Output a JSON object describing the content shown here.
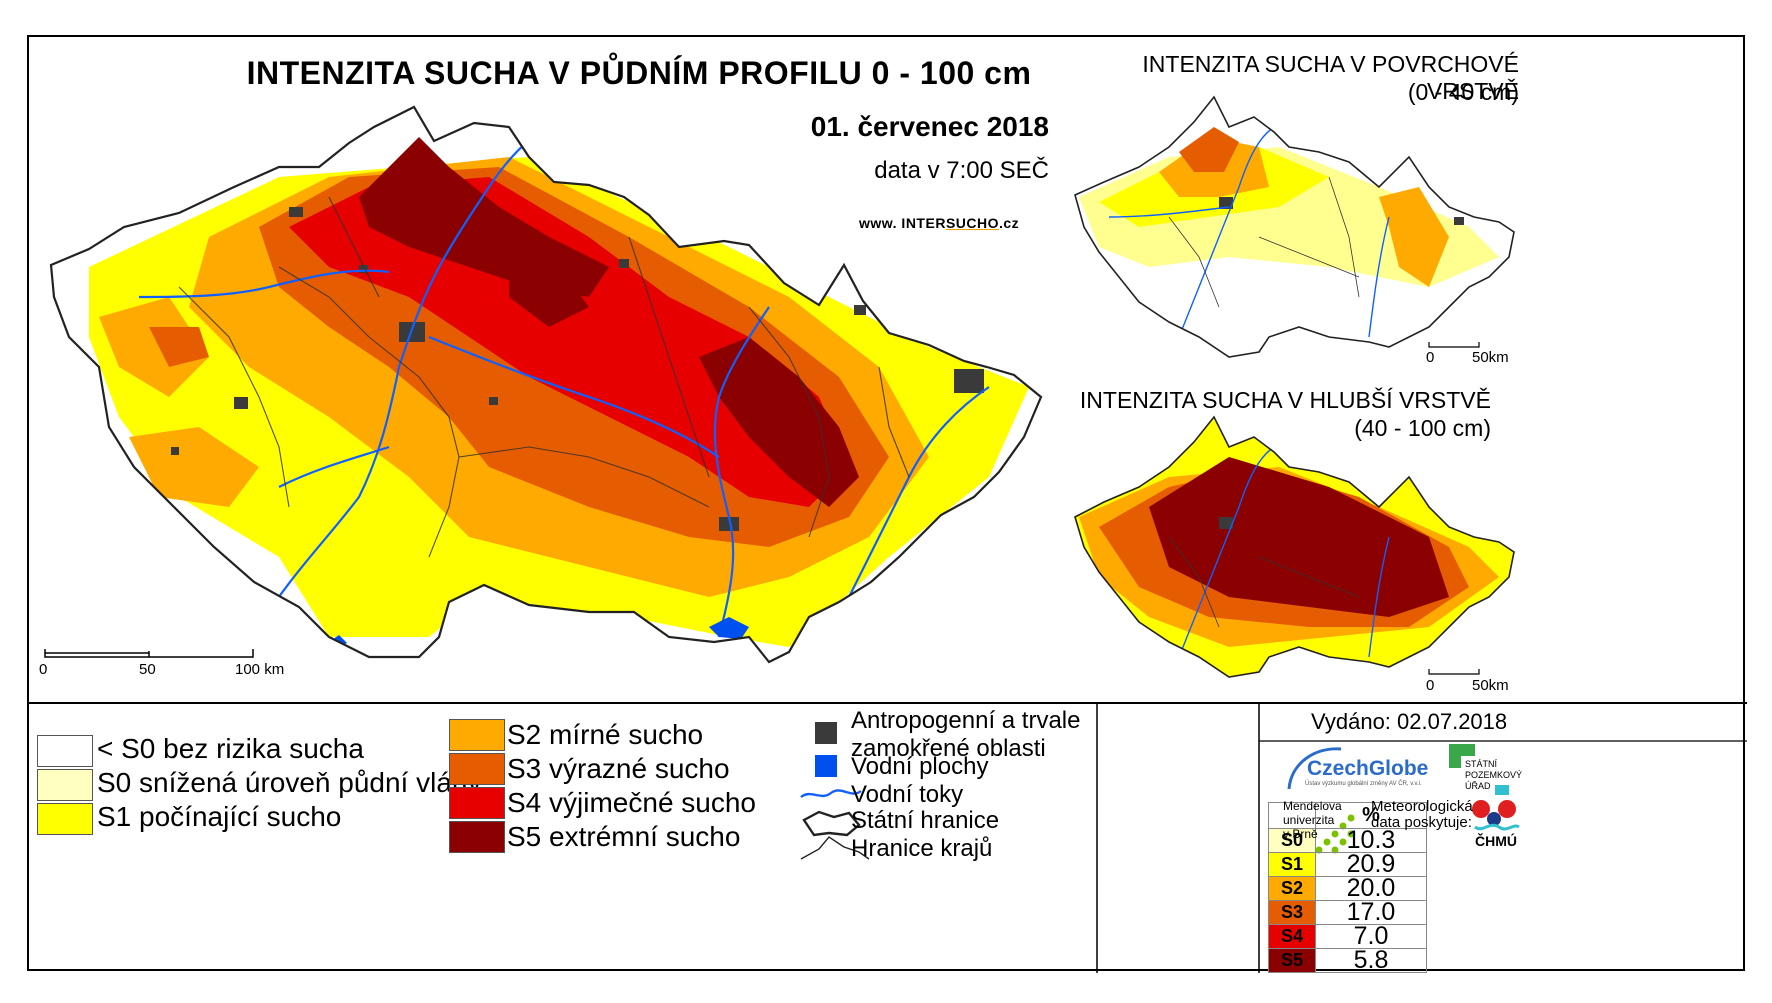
{
  "main": {
    "title": "INTENZITA SUCHA V PŮDNÍM PROFILU 0 - 100 cm",
    "date": "01. červenec 2018",
    "time": "data v 7:00 SEČ",
    "web_prefix": "www. INTER",
    "web_em": "SUCHO",
    "web_suffix": ".cz",
    "scale": [
      "0",
      "50",
      "100 km"
    ]
  },
  "surface": {
    "title": "INTENZITA SUCHA V POVRCHOVÉ VRSTVĚ",
    "depth": "(0 - 40 cm)",
    "scale": [
      "0",
      "50km"
    ]
  },
  "deep": {
    "title": "INTENZITA SUCHA V HLUBŠÍ VRSTVĚ",
    "depth": "(40 - 100 cm)",
    "scale": [
      "0",
      "50km"
    ]
  },
  "legend": {
    "classes": [
      {
        "label": "< S0 bez rizika sucha",
        "color": "#ffffff"
      },
      {
        "label": "S0 snížená úroveň půdní vláhy",
        "color": "#ffffc0"
      },
      {
        "label": "S1 počínající sucho",
        "color": "#ffff00"
      },
      {
        "label": "S2 mírné sucho",
        "color": "#ffaa00"
      },
      {
        "label": "S3 výrazné sucho",
        "color": "#e65c00"
      },
      {
        "label": "S4 výjimečné sucho",
        "color": "#e60000"
      },
      {
        "label": "S5 extrémní sucho",
        "color": "#8b0000"
      }
    ],
    "symbols": {
      "anthropogenic": "Antropogenní a trvale zamokřené oblasti",
      "water_bodies": "Vodní plochy",
      "streams": "Vodní toky",
      "border": "Státní hranice",
      "regions": "Hranice krajů"
    },
    "colors": {
      "anthropogenic": "#3a3a3a",
      "water": "#0050f0",
      "streams": "#1060ff"
    }
  },
  "percent_table": {
    "header": "%",
    "rows": [
      {
        "code": "S0",
        "value": "10.3",
        "color": "#ffffc0"
      },
      {
        "code": "S1",
        "value": "20.9",
        "color": "#ffff00"
      },
      {
        "code": "S2",
        "value": "20.0",
        "color": "#ffaa00"
      },
      {
        "code": "S3",
        "value": "17.0",
        "color": "#e65c00"
      },
      {
        "code": "S4",
        "value": "7.0",
        "color": "#e60000"
      },
      {
        "code": "S5",
        "value": "5.8",
        "color": "#8b0000"
      }
    ]
  },
  "credits": {
    "issued": "Vydáno: 02.07.2018",
    "czechglobe": "CzechGlobe",
    "czechglobe_sub": "Ústav výzkumu globální změny AV ČR, v.v.i.",
    "spu": "STÁTNÍ POZEMKOVÝ ÚŘAD",
    "mendelu": "Mendelova univerzita v Brně",
    "met": "Meteorologická data poskytuje:",
    "chmu": "ČHMÚ"
  }
}
